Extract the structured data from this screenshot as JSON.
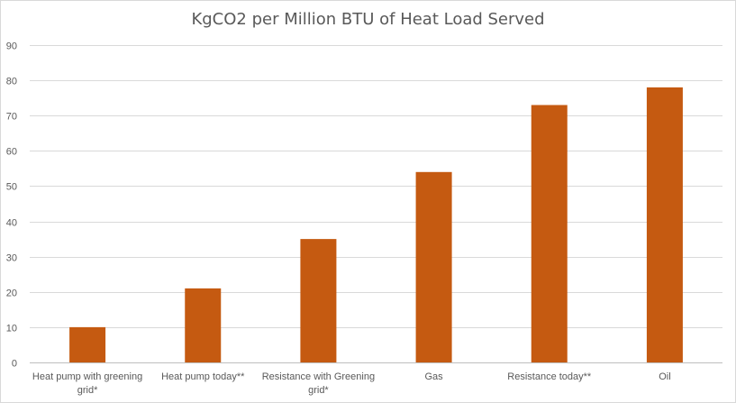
{
  "chart_data": {
    "type": "bar",
    "title": "KgCO2 per Million BTU of Heat Load Served",
    "xlabel": "",
    "ylabel": "",
    "categories": [
      [
        "Heat pump with greening",
        "grid*"
      ],
      [
        "Heat pump today**"
      ],
      [
        "Resistance with Greening",
        "grid*"
      ],
      [
        "Gas"
      ],
      [
        "Resistance today**"
      ],
      [
        "Oil"
      ]
    ],
    "values": [
      10,
      21,
      35,
      54,
      73,
      78
    ],
    "ylim": [
      0,
      90
    ],
    "yticks": [
      0,
      10,
      20,
      30,
      40,
      50,
      60,
      70,
      80,
      90
    ],
    "grid": true,
    "legend": "none",
    "bar_color": "#c55a11",
    "grid_color": "#d9d9d9"
  }
}
